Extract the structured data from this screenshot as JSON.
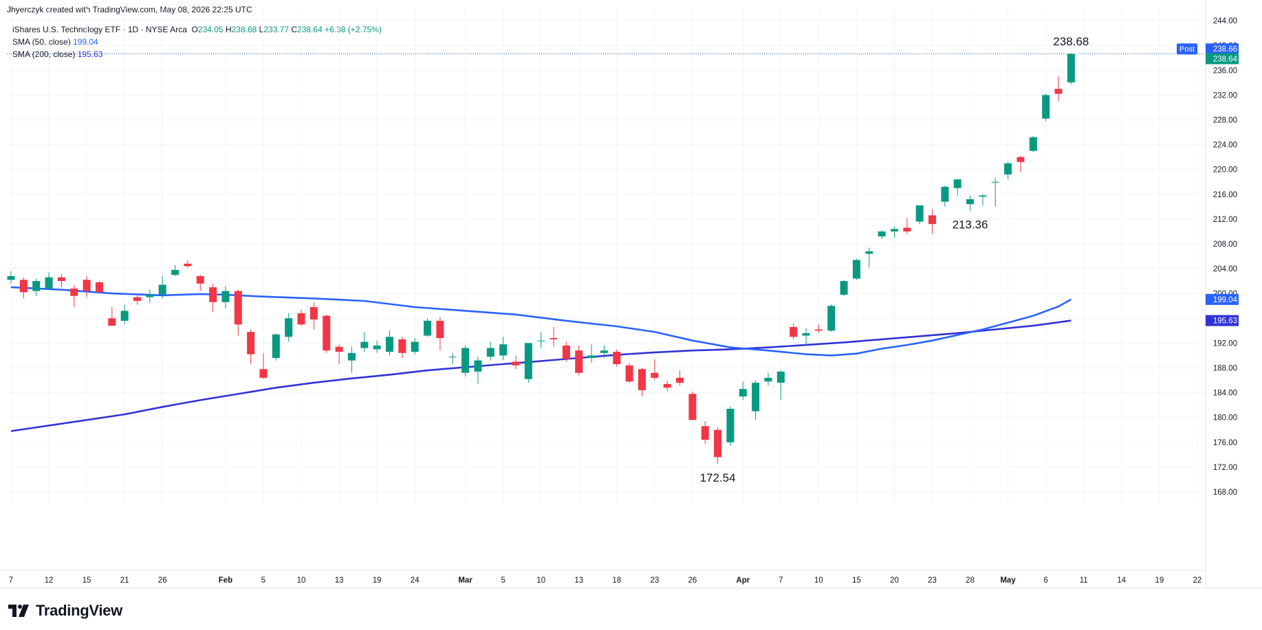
{
  "header": {
    "caption": "Jhyerczyk created with TradingView.com, May 08, 2026 22:25 UTC"
  },
  "legend": {
    "symbol_desc": "iShares U.S. Technology ETF · 1D · NYSE Arca",
    "o_label": "O",
    "o_value": "234.05",
    "h_label": "H",
    "h_value": "238.68",
    "l_label": "L",
    "l_value": "233.77",
    "c_label": "C",
    "c_value": "238.64",
    "change": "+6.38 (+2.75%)",
    "sma50_label": "SMA (50, close)",
    "sma50_value": "199.04",
    "sma200_label": "SMA (200, close)",
    "sma200_value": "195.63"
  },
  "brand": {
    "name": "TradingView"
  },
  "colors": {
    "up": "#089981",
    "down": "#f23645",
    "sma50": "#2962ff",
    "sma200": "#3032d6",
    "grid": "#f0f3fa",
    "axis_text": "#131722",
    "price_line": "#1f5aa6"
  },
  "chart_data": {
    "type": "candlestick",
    "ylim": [
      166,
      246
    ],
    "y_ticks": [
      168,
      172,
      176,
      180,
      184,
      188,
      192,
      196,
      200,
      204,
      208,
      212,
      216,
      220,
      224,
      228,
      232,
      236,
      240,
      244
    ],
    "y_tick_labels": [
      "168.00",
      "172.00",
      "176.00",
      "180.00",
      "184.00",
      "188.00",
      "192.00",
      "196.00",
      "200.00",
      "204.00",
      "208.00",
      "212.00",
      "216.00",
      "220.00",
      "224.00",
      "228.00",
      "232.00",
      "236.00",
      "240.00",
      "244.00"
    ],
    "x_labels": [
      {
        "i": 0,
        "label": "7"
      },
      {
        "i": 3,
        "label": "12"
      },
      {
        "i": 6,
        "label": "15"
      },
      {
        "i": 9,
        "label": "21"
      },
      {
        "i": 12,
        "label": "26"
      },
      {
        "i": 17,
        "label": "Feb"
      },
      {
        "i": 20,
        "label": "5"
      },
      {
        "i": 23,
        "label": "10"
      },
      {
        "i": 26,
        "label": "13"
      },
      {
        "i": 29,
        "label": "19"
      },
      {
        "i": 32,
        "label": "24"
      },
      {
        "i": 36,
        "label": "Mar"
      },
      {
        "i": 39,
        "label": "5"
      },
      {
        "i": 42,
        "label": "10"
      },
      {
        "i": 45,
        "label": "13"
      },
      {
        "i": 48,
        "label": "18"
      },
      {
        "i": 51,
        "label": "23"
      },
      {
        "i": 54,
        "label": "26"
      },
      {
        "i": 58,
        "label": "Apr"
      },
      {
        "i": 61,
        "label": "7"
      },
      {
        "i": 64,
        "label": "10"
      },
      {
        "i": 67,
        "label": "15"
      },
      {
        "i": 70,
        "label": "20"
      },
      {
        "i": 73,
        "label": "23"
      },
      {
        "i": 76,
        "label": "28"
      },
      {
        "i": 79,
        "label": "May"
      },
      {
        "i": 82,
        "label": "6"
      },
      {
        "i": 85,
        "label": "11"
      },
      {
        "i": 88,
        "label": "14"
      },
      {
        "i": 91,
        "label": "19"
      },
      {
        "i": 94,
        "label": "22"
      }
    ],
    "candles": [
      {
        "o": 202.2,
        "h": 203.6,
        "l": 201.6,
        "c": 202.8
      },
      {
        "o": 202.2,
        "h": 202.6,
        "l": 199.2,
        "c": 200.2
      },
      {
        "o": 200.4,
        "h": 202.4,
        "l": 199.6,
        "c": 202.0
      },
      {
        "o": 200.8,
        "h": 203.4,
        "l": 200.6,
        "c": 202.6
      },
      {
        "o": 202.6,
        "h": 203.2,
        "l": 201.0,
        "c": 202.0
      },
      {
        "o": 200.8,
        "h": 201.4,
        "l": 197.8,
        "c": 199.6
      },
      {
        "o": 202.2,
        "h": 202.8,
        "l": 199.4,
        "c": 200.4
      },
      {
        "o": 201.8,
        "h": 202.0,
        "l": 200.0,
        "c": 200.2
      },
      {
        "o": 196.0,
        "h": 197.8,
        "l": 194.8,
        "c": 194.8
      },
      {
        "o": 195.6,
        "h": 198.2,
        "l": 195.0,
        "c": 197.2
      },
      {
        "o": 199.4,
        "h": 200.0,
        "l": 198.2,
        "c": 198.8
      },
      {
        "o": 199.4,
        "h": 200.6,
        "l": 198.4,
        "c": 199.8
      },
      {
        "o": 199.8,
        "h": 202.8,
        "l": 199.2,
        "c": 201.4
      },
      {
        "o": 203.0,
        "h": 204.6,
        "l": 202.8,
        "c": 203.8
      },
      {
        "o": 204.8,
        "h": 205.4,
        "l": 204.2,
        "c": 204.4
      },
      {
        "o": 202.8,
        "h": 203.0,
        "l": 200.4,
        "c": 201.6
      },
      {
        "o": 201.0,
        "h": 201.6,
        "l": 197.0,
        "c": 198.6
      },
      {
        "o": 198.6,
        "h": 201.2,
        "l": 197.6,
        "c": 200.4
      },
      {
        "o": 200.4,
        "h": 200.6,
        "l": 193.2,
        "c": 195.0
      },
      {
        "o": 193.8,
        "h": 194.2,
        "l": 188.6,
        "c": 190.2
      },
      {
        "o": 187.8,
        "h": 190.4,
        "l": 186.2,
        "c": 186.4
      },
      {
        "o": 189.6,
        "h": 193.6,
        "l": 189.2,
        "c": 193.4
      },
      {
        "o": 193.0,
        "h": 196.8,
        "l": 192.2,
        "c": 196.0
      },
      {
        "o": 196.8,
        "h": 197.4,
        "l": 194.8,
        "c": 195.0
      },
      {
        "o": 197.8,
        "h": 198.6,
        "l": 194.2,
        "c": 195.8
      },
      {
        "o": 196.4,
        "h": 196.6,
        "l": 190.4,
        "c": 190.8
      },
      {
        "o": 191.4,
        "h": 191.8,
        "l": 188.6,
        "c": 190.6
      },
      {
        "o": 189.2,
        "h": 191.4,
        "l": 187.2,
        "c": 190.4
      },
      {
        "o": 191.2,
        "h": 193.8,
        "l": 190.6,
        "c": 192.2
      },
      {
        "o": 191.0,
        "h": 192.4,
        "l": 190.4,
        "c": 191.6
      },
      {
        "o": 190.6,
        "h": 194.0,
        "l": 190.0,
        "c": 193.0
      },
      {
        "o": 192.6,
        "h": 193.0,
        "l": 189.6,
        "c": 190.4
      },
      {
        "o": 190.6,
        "h": 192.8,
        "l": 190.2,
        "c": 192.2
      },
      {
        "o": 193.2,
        "h": 196.0,
        "l": 193.0,
        "c": 195.6
      },
      {
        "o": 195.6,
        "h": 196.2,
        "l": 190.8,
        "c": 192.8
      },
      {
        "o": 189.8,
        "h": 190.4,
        "l": 188.6,
        "c": 189.8
      },
      {
        "o": 187.2,
        "h": 191.6,
        "l": 186.6,
        "c": 191.2
      },
      {
        "o": 187.4,
        "h": 189.8,
        "l": 185.4,
        "c": 189.2
      },
      {
        "o": 189.8,
        "h": 192.2,
        "l": 189.2,
        "c": 191.2
      },
      {
        "o": 190.0,
        "h": 193.0,
        "l": 189.2,
        "c": 191.8
      },
      {
        "o": 189.0,
        "h": 190.0,
        "l": 187.8,
        "c": 188.4
      },
      {
        "o": 186.2,
        "h": 192.0,
        "l": 185.6,
        "c": 192.0
      },
      {
        "o": 192.4,
        "h": 193.8,
        "l": 191.2,
        "c": 192.4
      },
      {
        "o": 192.8,
        "h": 194.6,
        "l": 191.4,
        "c": 192.6
      },
      {
        "o": 191.6,
        "h": 192.2,
        "l": 189.0,
        "c": 189.4
      },
      {
        "o": 190.8,
        "h": 191.6,
        "l": 186.8,
        "c": 187.2
      },
      {
        "o": 189.6,
        "h": 191.8,
        "l": 188.8,
        "c": 190.0
      },
      {
        "o": 190.4,
        "h": 191.6,
        "l": 189.6,
        "c": 190.8
      },
      {
        "o": 190.6,
        "h": 191.0,
        "l": 188.2,
        "c": 188.6
      },
      {
        "o": 188.4,
        "h": 188.8,
        "l": 185.6,
        "c": 185.8
      },
      {
        "o": 187.8,
        "h": 188.0,
        "l": 183.4,
        "c": 184.4
      },
      {
        "o": 187.2,
        "h": 189.4,
        "l": 186.0,
        "c": 186.4
      },
      {
        "o": 185.4,
        "h": 186.0,
        "l": 184.2,
        "c": 184.8
      },
      {
        "o": 186.4,
        "h": 187.6,
        "l": 185.2,
        "c": 185.6
      },
      {
        "o": 183.8,
        "h": 184.2,
        "l": 179.6,
        "c": 179.6
      },
      {
        "o": 178.6,
        "h": 179.4,
        "l": 175.8,
        "c": 176.4
      },
      {
        "o": 178.0,
        "h": 178.4,
        "l": 172.54,
        "c": 173.6
      },
      {
        "o": 176.0,
        "h": 181.8,
        "l": 175.4,
        "c": 181.4
      },
      {
        "o": 183.4,
        "h": 185.8,
        "l": 182.8,
        "c": 184.6
      },
      {
        "o": 181.0,
        "h": 186.0,
        "l": 179.6,
        "c": 185.6
      },
      {
        "o": 185.8,
        "h": 187.2,
        "l": 185.2,
        "c": 186.4
      },
      {
        "o": 185.6,
        "h": 187.6,
        "l": 182.8,
        "c": 187.4
      },
      {
        "o": 194.6,
        "h": 195.2,
        "l": 192.6,
        "c": 193.0
      },
      {
        "o": 193.2,
        "h": 194.4,
        "l": 191.6,
        "c": 193.6
      },
      {
        "o": 194.2,
        "h": 195.0,
        "l": 193.6,
        "c": 194.0
      },
      {
        "o": 194.0,
        "h": 198.2,
        "l": 193.8,
        "c": 198.0
      },
      {
        "o": 199.8,
        "h": 202.2,
        "l": 199.6,
        "c": 202.0
      },
      {
        "o": 202.4,
        "h": 205.6,
        "l": 202.2,
        "c": 205.4
      },
      {
        "o": 206.4,
        "h": 207.4,
        "l": 204.2,
        "c": 206.8
      },
      {
        "o": 209.2,
        "h": 210.2,
        "l": 208.8,
        "c": 210.0
      },
      {
        "o": 210.0,
        "h": 210.8,
        "l": 209.0,
        "c": 210.4
      },
      {
        "o": 210.6,
        "h": 212.2,
        "l": 209.6,
        "c": 210.0
      },
      {
        "o": 211.6,
        "h": 214.2,
        "l": 211.2,
        "c": 214.2
      },
      {
        "o": 212.6,
        "h": 213.6,
        "l": 209.6,
        "c": 211.2
      },
      {
        "o": 214.8,
        "h": 217.4,
        "l": 214.0,
        "c": 217.2
      },
      {
        "o": 217.0,
        "h": 218.4,
        "l": 215.8,
        "c": 218.4
      },
      {
        "o": 214.4,
        "h": 215.8,
        "l": 213.36,
        "c": 215.2
      },
      {
        "o": 215.6,
        "h": 216.0,
        "l": 214.2,
        "c": 215.8
      },
      {
        "o": 218.0,
        "h": 218.6,
        "l": 214.0,
        "c": 218.0
      },
      {
        "o": 219.2,
        "h": 221.2,
        "l": 218.4,
        "c": 221.0
      },
      {
        "o": 222.0,
        "h": 222.2,
        "l": 219.6,
        "c": 221.2
      },
      {
        "o": 223.0,
        "h": 225.4,
        "l": 222.8,
        "c": 225.2
      },
      {
        "o": 228.2,
        "h": 232.2,
        "l": 227.8,
        "c": 232.0
      },
      {
        "o": 233.0,
        "h": 235.0,
        "l": 231.0,
        "c": 232.2
      },
      {
        "o": 234.05,
        "h": 238.68,
        "l": 233.77,
        "c": 238.64
      }
    ],
    "sma50": [
      [
        0,
        201.0
      ],
      [
        4,
        200.6
      ],
      [
        8,
        200.0
      ],
      [
        12,
        199.7
      ],
      [
        15,
        199.9
      ],
      [
        17,
        199.8
      ],
      [
        20,
        199.5
      ],
      [
        24,
        199.2
      ],
      [
        28,
        198.8
      ],
      [
        32,
        197.8
      ],
      [
        36,
        197.2
      ],
      [
        40,
        196.6
      ],
      [
        44,
        195.6
      ],
      [
        48,
        194.7
      ],
      [
        51,
        193.8
      ],
      [
        54,
        192.4
      ],
      [
        57,
        191.3
      ],
      [
        60,
        190.8
      ],
      [
        63,
        190.2
      ],
      [
        65,
        190.0
      ],
      [
        67,
        190.3
      ],
      [
        69,
        191.1
      ],
      [
        71,
        191.7
      ],
      [
        73,
        192.4
      ],
      [
        75,
        193.3
      ],
      [
        77,
        194.2
      ],
      [
        79,
        195.3
      ],
      [
        81,
        196.4
      ],
      [
        83,
        197.9
      ],
      [
        84,
        199.04
      ]
    ],
    "sma200": [
      [
        0,
        177.8
      ],
      [
        3,
        178.7
      ],
      [
        6,
        179.6
      ],
      [
        9,
        180.5
      ],
      [
        12,
        181.7
      ],
      [
        15,
        182.8
      ],
      [
        18,
        183.8
      ],
      [
        21,
        184.8
      ],
      [
        24,
        185.6
      ],
      [
        27,
        186.3
      ],
      [
        30,
        186.9
      ],
      [
        33,
        187.6
      ],
      [
        36,
        188.1
      ],
      [
        39,
        188.6
      ],
      [
        42,
        189.1
      ],
      [
        45,
        189.6
      ],
      [
        48,
        190.1
      ],
      [
        51,
        190.5
      ],
      [
        54,
        190.8
      ],
      [
        57,
        191.0
      ],
      [
        60,
        191.3
      ],
      [
        63,
        191.7
      ],
      [
        66,
        192.1
      ],
      [
        69,
        192.6
      ],
      [
        72,
        193.1
      ],
      [
        75,
        193.6
      ],
      [
        78,
        194.2
      ],
      [
        81,
        194.8
      ],
      [
        84,
        195.63
      ]
    ],
    "annotations": [
      {
        "i": 84,
        "price": 238.68,
        "text": "238.68",
        "pos": "above"
      },
      {
        "i": 76,
        "price": 213.36,
        "text": "213.36",
        "pos": "below"
      },
      {
        "i": 56,
        "price": 172.54,
        "text": "172.54",
        "pos": "below"
      }
    ],
    "price_labels": [
      {
        "price": 238.66,
        "text": "238.66",
        "tag": "Post",
        "color": "#2962ff"
      },
      {
        "price": 238.64,
        "text": "238.64",
        "color": "#089981"
      },
      {
        "price": 199.04,
        "text": "199.04",
        "color": "#2962ff"
      },
      {
        "price": 195.63,
        "text": "195.63",
        "color": "#3032d6"
      }
    ],
    "last_price": 238.64,
    "grid": true
  }
}
